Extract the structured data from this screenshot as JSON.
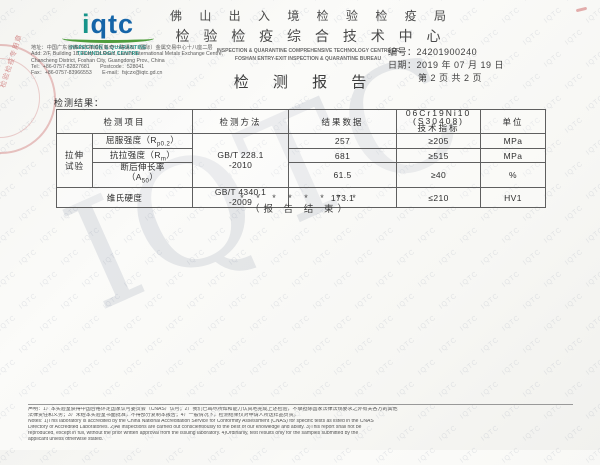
{
  "watermark": {
    "text": "IQTC"
  },
  "colors": {
    "logo_teal": "#17948a",
    "logo_blue": "#1565a8",
    "swoosh_green": "#4f9d3c",
    "seal_red": "#c65c5c"
  },
  "header": {
    "logo_i": "i",
    "logo_qtc": "qtc",
    "logo_tagline_line1": "INSPECTION & QUARANTINE",
    "logo_tagline_line2": "TECHNOLOGY CENTRE",
    "org_cn_line1": "佛 山 出 入 境 检 验 检 疫 局",
    "org_cn_line2": "检 验 检 疫 综 合 技 术 中 心",
    "org_en_line1": "INSPECTION & QUARANTINE COMPREHENSIVE TECHNOLOGY CENTRE OF",
    "org_en_line2": "FOSHAN ENTRY-EXIT INSPECTION & QUARANTINE BUREAU",
    "address_lines": [
      "地址：中国广东省佛山市禅城区魁奇一路澜石（国际）金属交易中心十八座二层",
      "Add: 2/F, Building 18, Kuiqi 1st Road, Lanshi International Metals Exchange Centre,",
      "Chancheng District, Foshan City, Guangdong Prov., China",
      "Tel：+86-0757-82827681　　Postcode：528041",
      "Fax：+86-0757-83966553　　E-mail：fsjczx@iqtc.gd.cn"
    ]
  },
  "doc_info": {
    "number_label": "编号：",
    "number": "24201900240",
    "date_label": "日期：",
    "date": "2019 年 07 月 19 日",
    "page_info": "第 2 页 共 2 页"
  },
  "title": "检 测 报 告",
  "results_label": "检测结果：",
  "table": {
    "headers": {
      "item": "检测项目",
      "method": "检测方法",
      "result": "结果数据",
      "spec_line1": "06Cr19Ni10",
      "spec_line2": "(S30408)",
      "spec_line3": "技术指标",
      "unit": "单位"
    },
    "group_label_line1": "拉伸",
    "group_label_line2": "试验",
    "method_tensile_line1": "GB/T 228.1",
    "method_tensile_line2": "-2010",
    "method_hardness_line1": "GB/T 4340.1",
    "method_hardness_line2": "-2009",
    "rows": [
      {
        "item_pre": "屈服强度（R",
        "item_sub": "p0.2",
        "item_post": "）",
        "result": "257",
        "spec": "≥205",
        "unit": "MPa"
      },
      {
        "item_pre": "抗拉强度（R",
        "item_sub": "m",
        "item_post": "）",
        "result": "681",
        "spec": "≥515",
        "unit": "MPa"
      },
      {
        "item_line1": "断后伸长率",
        "item_pre": "（A",
        "item_sub": "50",
        "item_post": "）",
        "result": "61.5",
        "spec": "≥40",
        "unit": "%"
      },
      {
        "item": "维氏硬度",
        "result": "173.1",
        "spec": "≤210",
        "unit": "HV1"
      }
    ]
  },
  "end_marks": {
    "asterisks": "* * * * * * * *",
    "end_label": "（报 告 结 束）"
  },
  "seal": {
    "text": "检验检疫专用章"
  },
  "footer": {
    "lines": [
      "声明：1）本实验室获得中国合格评定国家认可委员会（CNAS）认可；2）我们已竭尽所知和能力认真地完成上述检验，不承担除国家法律法规要求之外有关各方的其他",
      "法律责任和义务；3）未经本实验室书面批准，不得部分复制本报告；4）一般情况下，检测结果仅对申请人所送样品负责。",
      "Notes: 1)This laboratory is accredited by the China National Accreditation Service for Conformity Assessment (CNAS) for specific tests as listed in the CNAS",
      "Directory of Accredited Laboratories. 2)All inspections are carried out conscientiously to the best of our knowledge and ability. 3)This report shall not be",
      "reproduced, except in full, without the prior written approval from the issuing laboratory. 4)Ordinarily, test results only for the samples submitted by the",
      "applicant unless otherwise stated."
    ]
  }
}
